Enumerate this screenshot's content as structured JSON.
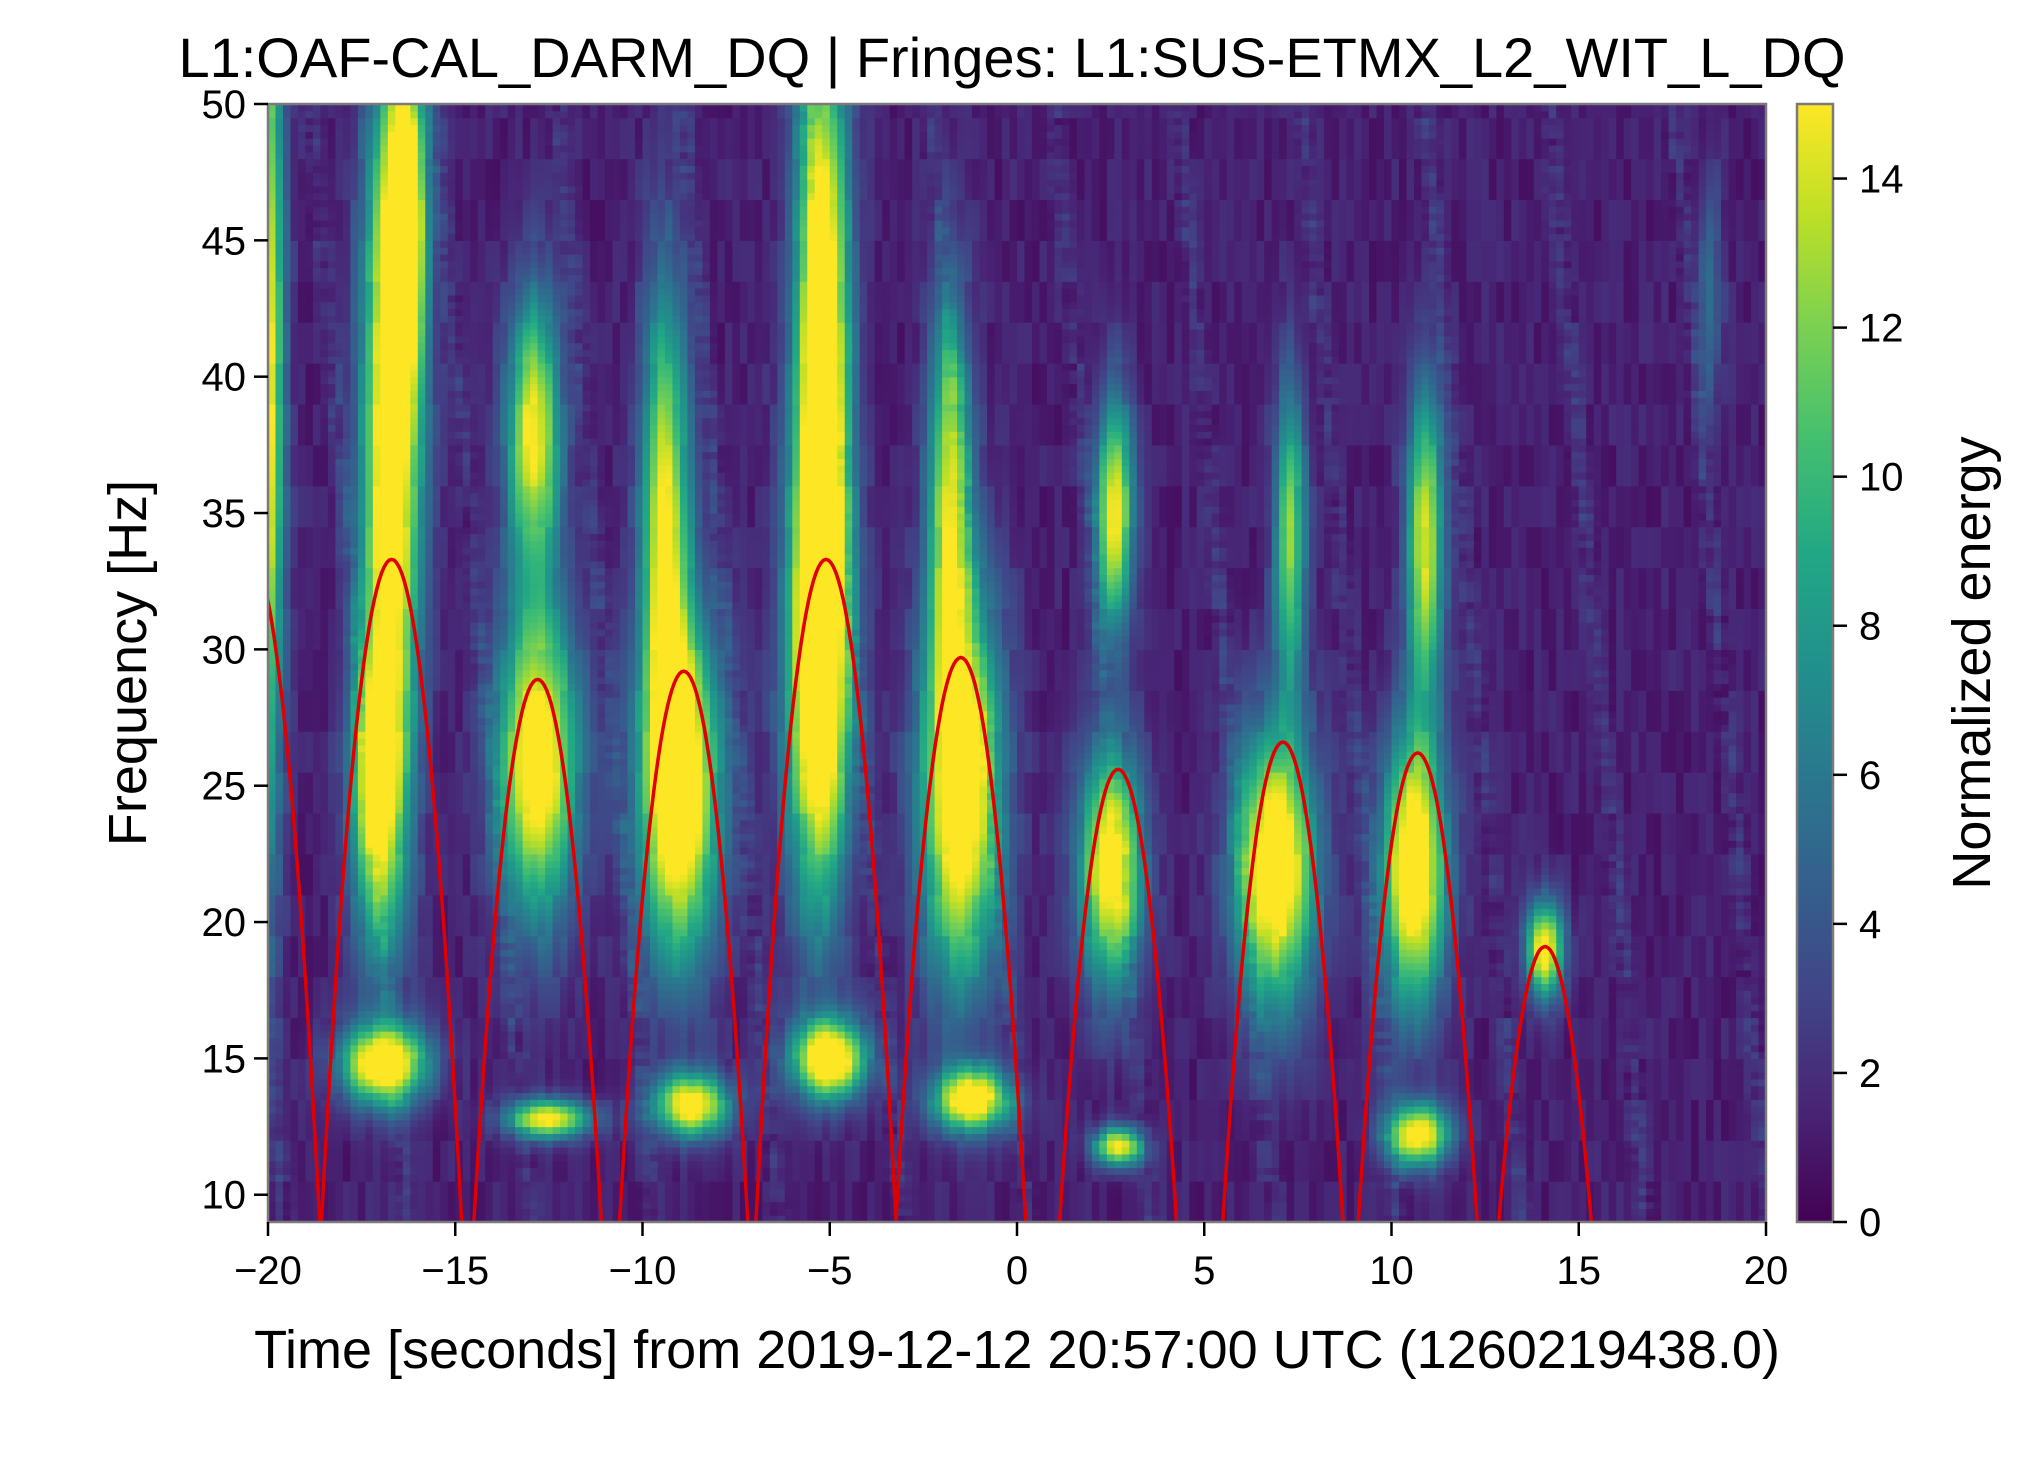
{
  "chart_data": {
    "type": "heatmap",
    "title": "L1:OAF-CAL_DARM_DQ | Fringes: L1:SUS-ETMX_L2_WIT_L_DQ",
    "xlabel": "Time [seconds] from 2019-12-12 20:57:00 UTC (1260219438.0)",
    "ylabel": "Frequency [Hz]",
    "xlim": [
      -20,
      20
    ],
    "ylim": [
      9,
      50
    ],
    "x_ticks": [
      -20,
      -15,
      -10,
      -5,
      0,
      5,
      10,
      15,
      20
    ],
    "x_tick_labels": [
      "−20",
      "−15",
      "−10",
      "−5",
      "0",
      "5",
      "10",
      "15",
      "20"
    ],
    "y_ticks": [
      10,
      15,
      20,
      25,
      30,
      35,
      40,
      45,
      50
    ],
    "y_tick_labels": [
      "10",
      "15",
      "20",
      "25",
      "30",
      "35",
      "40",
      "45",
      "50"
    ],
    "colorbar": {
      "label": "Normalized energy",
      "range": [
        0,
        15
      ],
      "ticks": [
        0,
        2,
        4,
        6,
        8,
        10,
        12,
        14
      ],
      "tick_labels": [
        "0",
        "2",
        "4",
        "6",
        "8",
        "10",
        "12",
        "14"
      ],
      "colormap": "viridis"
    },
    "fringe_series": {
      "color": "#e00000",
      "peaks": [
        {
          "t": -20.5,
          "f": 33.5
        },
        {
          "t": -16.7,
          "f": 33.3
        },
        {
          "t": -12.8,
          "f": 28.9
        },
        {
          "t": -8.9,
          "f": 29.2
        },
        {
          "t": -5.1,
          "f": 33.3
        },
        {
          "t": -1.5,
          "f": 29.7
        },
        {
          "t": 2.7,
          "f": 25.6
        },
        {
          "t": 7.1,
          "f": 26.6
        },
        {
          "t": 10.7,
          "f": 26.2
        },
        {
          "t": 14.1,
          "f": 19.1
        }
      ]
    },
    "energy_blobs": [
      {
        "t": -16.7,
        "f": 38,
        "st": 0.55,
        "sf": 9,
        "e": 17
      },
      {
        "t": -16.3,
        "f": 46,
        "st": 0.35,
        "sf": 4,
        "e": 15
      },
      {
        "t": -17.1,
        "f": 25,
        "st": 0.5,
        "sf": 4,
        "e": 13
      },
      {
        "t": -12.8,
        "f": 26,
        "st": 0.75,
        "sf": 4,
        "e": 16
      },
      {
        "t": -12.9,
        "f": 38,
        "st": 0.5,
        "sf": 3.5,
        "e": 14
      },
      {
        "t": -9.0,
        "f": 25,
        "st": 0.75,
        "sf": 4.5,
        "e": 17
      },
      {
        "t": -9.4,
        "f": 35,
        "st": 0.45,
        "sf": 6,
        "e": 13
      },
      {
        "t": -5.3,
        "f": 29,
        "st": 0.6,
        "sf": 6,
        "e": 17
      },
      {
        "t": -5.2,
        "f": 42,
        "st": 0.5,
        "sf": 8,
        "e": 17
      },
      {
        "t": -1.5,
        "f": 25,
        "st": 0.75,
        "sf": 5,
        "e": 17
      },
      {
        "t": -1.8,
        "f": 36,
        "st": 0.4,
        "sf": 5,
        "e": 12
      },
      {
        "t": 2.5,
        "f": 22,
        "st": 0.6,
        "sf": 3,
        "e": 15
      },
      {
        "t": 2.6,
        "f": 35,
        "st": 0.35,
        "sf": 3,
        "e": 14
      },
      {
        "t": 6.9,
        "f": 22,
        "st": 0.75,
        "sf": 3.5,
        "e": 17
      },
      {
        "t": 7.3,
        "f": 34,
        "st": 0.3,
        "sf": 4,
        "e": 11
      },
      {
        "t": 10.6,
        "f": 22,
        "st": 0.6,
        "sf": 3.5,
        "e": 17
      },
      {
        "t": 10.9,
        "f": 34,
        "st": 0.35,
        "sf": 4,
        "e": 13
      },
      {
        "t": 14.1,
        "f": 19,
        "st": 0.35,
        "sf": 1.2,
        "e": 15
      },
      {
        "t": -16.9,
        "f": 14.8,
        "st": 0.8,
        "sf": 1.0,
        "e": 17
      },
      {
        "t": -12.5,
        "f": 12.8,
        "st": 0.8,
        "sf": 0.5,
        "e": 14
      },
      {
        "t": -8.7,
        "f": 13.3,
        "st": 0.7,
        "sf": 0.8,
        "e": 15
      },
      {
        "t": -5.0,
        "f": 15.0,
        "st": 0.7,
        "sf": 1.0,
        "e": 17
      },
      {
        "t": -1.2,
        "f": 13.5,
        "st": 0.7,
        "sf": 0.8,
        "e": 16
      },
      {
        "t": 2.7,
        "f": 11.8,
        "st": 0.45,
        "sf": 0.5,
        "e": 14
      },
      {
        "t": 10.7,
        "f": 12.2,
        "st": 0.6,
        "sf": 0.8,
        "e": 15
      },
      {
        "t": -20,
        "f": 40,
        "st": 0.3,
        "sf": 12,
        "e": 14
      },
      {
        "t": 18.5,
        "f": 43,
        "st": 0.25,
        "sf": 3,
        "e": 4
      }
    ]
  }
}
